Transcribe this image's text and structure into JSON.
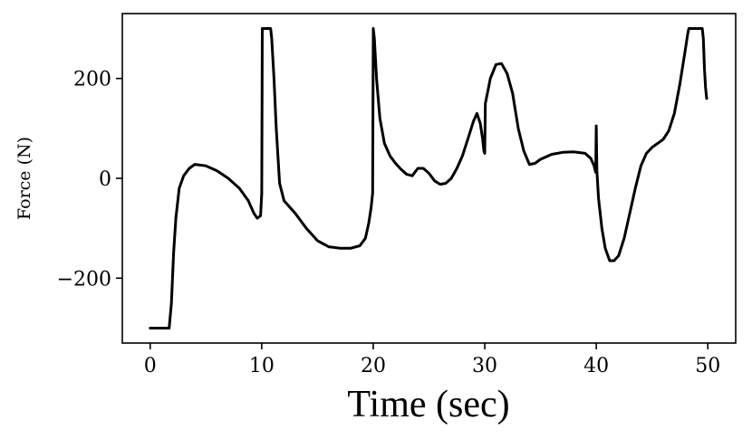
{
  "chart_data": {
    "type": "line",
    "title": "",
    "xlabel": "Time (sec)",
    "ylabel": "Force (N)",
    "xlim": [
      -2.5,
      52.5
    ],
    "ylim": [
      -330,
      330
    ],
    "xticks": [
      0,
      10,
      20,
      30,
      40,
      50
    ],
    "yticks": [
      -200,
      0,
      200
    ],
    "xtick_labels": [
      "0",
      "10",
      "20",
      "30",
      "40",
      "50"
    ],
    "ytick_labels": [
      "−200",
      "0",
      "200"
    ],
    "grid": false,
    "legend": "none",
    "line_color": "#000000",
    "series": [
      {
        "x": [
          0,
          1.7,
          1.9,
          2.1,
          2.3,
          2.6,
          3.0,
          3.5,
          4.0,
          5.0,
          6.0,
          7.0,
          8.0,
          8.8,
          9.3,
          9.6,
          9.9,
          10.0,
          10.05,
          10.8,
          10.9,
          11.1,
          11.3,
          11.6,
          12.0,
          13.0,
          14.0,
          15.0,
          16.0,
          17.0,
          18.0,
          18.8,
          19.3,
          19.6,
          19.8,
          19.95,
          20.0,
          20.1,
          20.3,
          20.6,
          21.0,
          21.5,
          22.0,
          22.5,
          23.0,
          23.5,
          24.0,
          24.5,
          25.0,
          25.5,
          26.0,
          26.5,
          27.0,
          27.5,
          28.0,
          28.5,
          29.0,
          29.3,
          29.6,
          29.8,
          29.92,
          30.0,
          30.05,
          30.5,
          31.0,
          31.5,
          32.0,
          32.5,
          33.0,
          33.5,
          34.0,
          34.5,
          35.0,
          36.0,
          37.0,
          38.0,
          39.0,
          39.5,
          39.8,
          39.95,
          40.0,
          40.05,
          40.2,
          40.5,
          40.8,
          41.2,
          41.6,
          42.0,
          42.5,
          43.0,
          43.5,
          44.0,
          44.5,
          45.0,
          46.0,
          46.5,
          47.0,
          47.5,
          48.0,
          48.2,
          48.3,
          49.5,
          49.6,
          49.7,
          49.8,
          49.9
        ],
        "y": [
          -300,
          -300,
          -250,
          -150,
          -80,
          -20,
          5,
          20,
          28,
          25,
          15,
          0,
          -20,
          -45,
          -70,
          -80,
          -75,
          -30,
          300,
          300,
          280,
          200,
          100,
          -10,
          -45,
          -70,
          -100,
          -125,
          -137,
          -140,
          -140,
          -135,
          -120,
          -90,
          -60,
          -30,
          300,
          280,
          200,
          120,
          70,
          45,
          30,
          18,
          8,
          5,
          20,
          20,
          10,
          -5,
          -12,
          -10,
          0,
          20,
          45,
          80,
          115,
          130,
          110,
          80,
          55,
          50,
          150,
          200,
          228,
          230,
          210,
          170,
          100,
          55,
          28,
          30,
          38,
          48,
          52,
          53,
          50,
          40,
          25,
          12,
          105,
          15,
          -40,
          -100,
          -140,
          -165,
          -165,
          -155,
          -120,
          -70,
          -20,
          25,
          50,
          62,
          78,
          95,
          130,
          190,
          260,
          290,
          300,
          300,
          280,
          220,
          180,
          160
        ]
      }
    ]
  }
}
